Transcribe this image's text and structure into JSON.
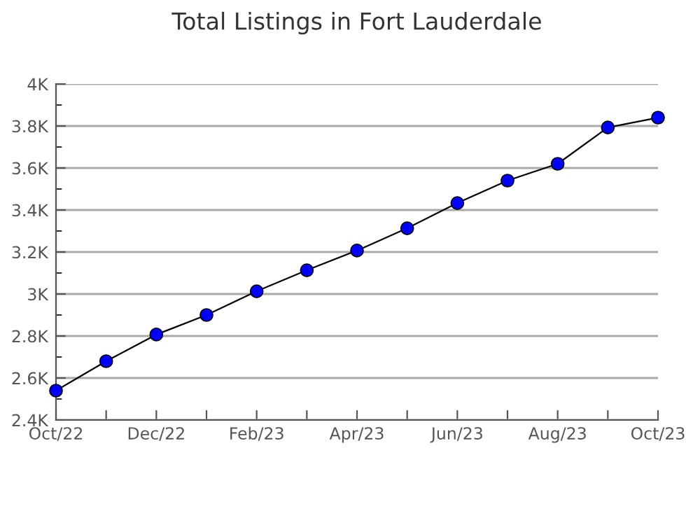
{
  "chart_data": {
    "type": "line",
    "title": "Total Listings in Fort Lauderdale",
    "categories": [
      "Oct/22",
      null,
      "Dec/22",
      null,
      "Feb/23",
      null,
      "Apr/23",
      null,
      "Jun/23",
      null,
      "Aug/23",
      null,
      "Oct/23"
    ],
    "series": [
      {
        "color": "#0000ff",
        "values": [
          2540,
          2680,
          2807,
          2900,
          3013,
          3113,
          3207,
          3313,
          3433,
          3540,
          3620,
          3793,
          3840
        ]
      }
    ],
    "ylim": [
      2400,
      4000
    ],
    "yticks": [
      {
        "value": 2400,
        "label": "2.4K"
      },
      {
        "value": 2500,
        "label": null
      },
      {
        "value": 2600,
        "label": "2.6K"
      },
      {
        "value": 2700,
        "label": null
      },
      {
        "value": 2800,
        "label": "2.8K"
      },
      {
        "value": 2900,
        "label": null
      },
      {
        "value": 3000,
        "label": "3K"
      },
      {
        "value": 3100,
        "label": null
      },
      {
        "value": 3200,
        "label": "3.2K"
      },
      {
        "value": 3300,
        "label": null
      },
      {
        "value": 3400,
        "label": "3.4K"
      },
      {
        "value": 3500,
        "label": null
      },
      {
        "value": 3600,
        "label": "3.6K"
      },
      {
        "value": 3700,
        "label": null
      },
      {
        "value": 3800,
        "label": "3.8K"
      },
      {
        "value": 3900,
        "label": null
      },
      {
        "value": 4000,
        "label": "4K"
      }
    ],
    "grid": "y",
    "marker": "circle",
    "line_style": "solid"
  }
}
